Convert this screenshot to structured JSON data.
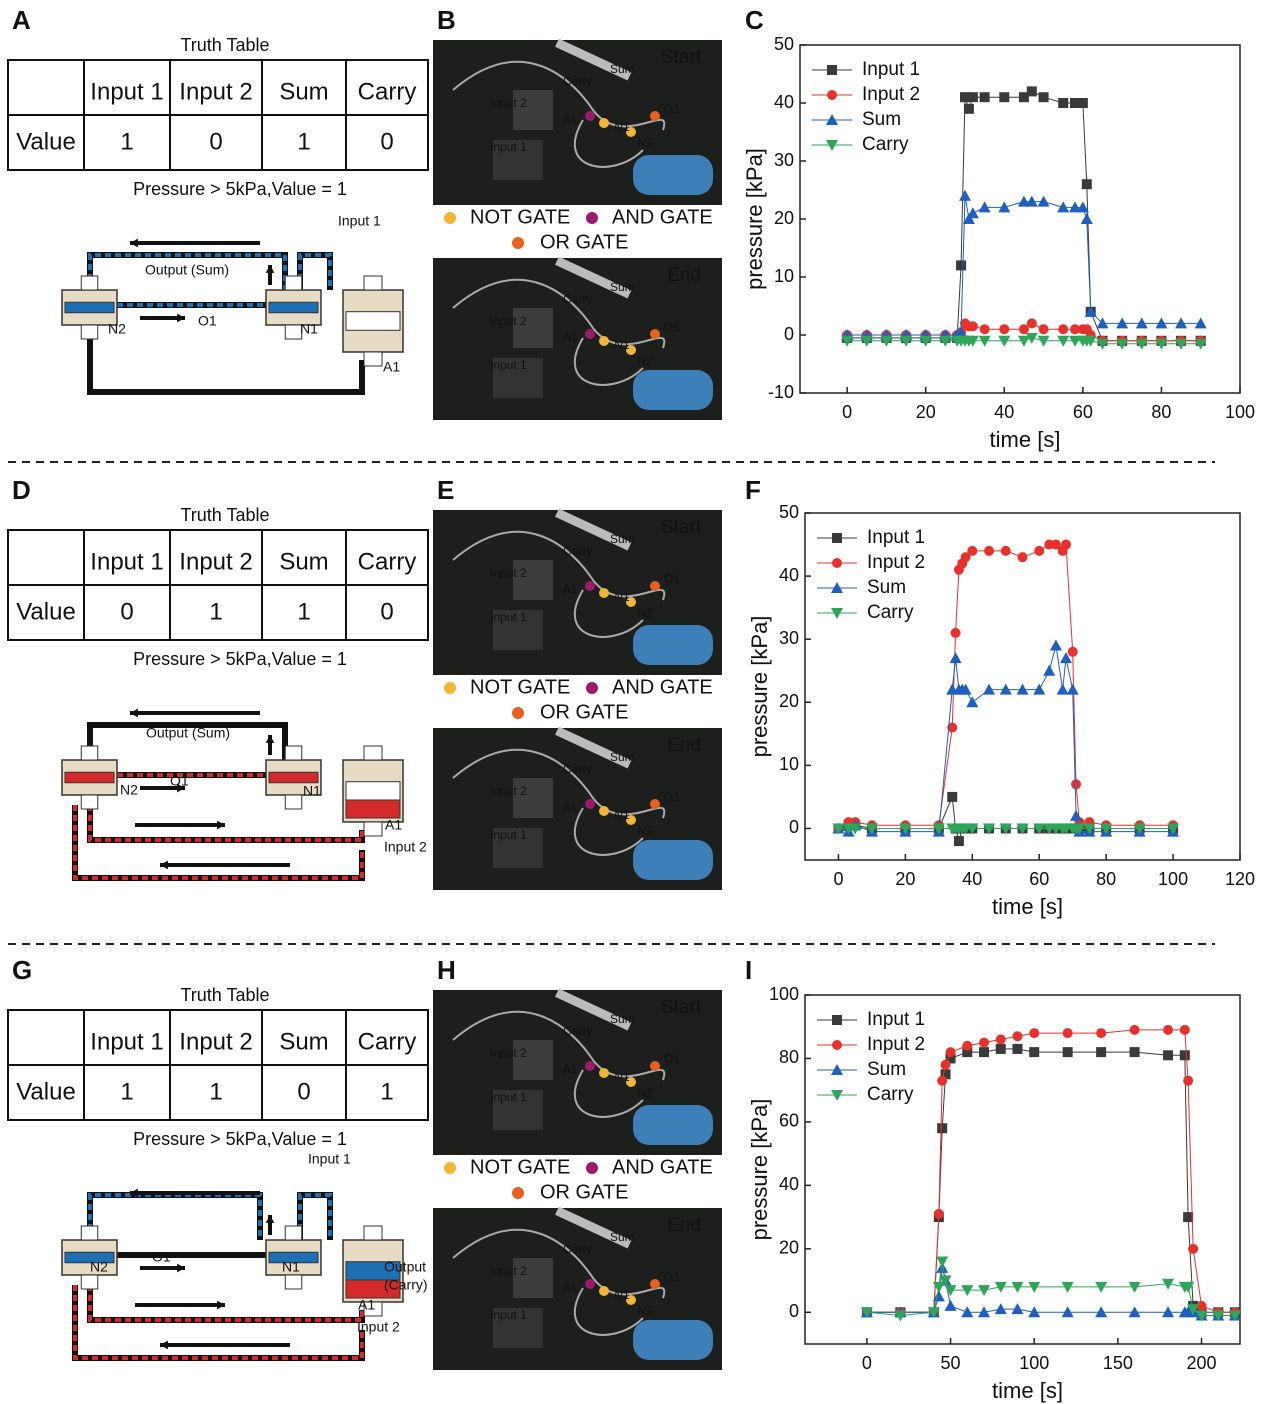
{
  "rows": [
    {
      "letters": [
        "A",
        "B",
        "C"
      ],
      "truth_table": {
        "title": "Truth Table",
        "columns": [
          "Input 1",
          "Input 2",
          "Sum",
          "Carry"
        ],
        "row_label": "Value",
        "values": [
          1,
          0,
          1,
          0
        ]
      },
      "note": "Pressure > 5kPa,Value = 1",
      "diagram_labels": [
        "Input 1",
        "Output (Sum)",
        "N2",
        "O1",
        "N1",
        "A1"
      ],
      "photos": [
        {
          "tag": "Start",
          "labels": [
            "Sum",
            "Carry",
            "Input 2",
            "A1",
            "N1",
            "N2",
            "O1",
            "Input 1"
          ]
        },
        {
          "tag": "End",
          "labels": [
            "Sum",
            "Carry",
            "Input 2",
            "A1",
            "N1",
            "N2",
            "O1",
            "Input 1"
          ]
        }
      ],
      "legend": [
        "NOT GATE",
        "AND GATE",
        "OR GATE"
      ]
    },
    {
      "letters": [
        "D",
        "E",
        "F"
      ],
      "truth_table": {
        "title": "Truth Table",
        "columns": [
          "Input 1",
          "Input 2",
          "Sum",
          "Carry"
        ],
        "row_label": "Value",
        "values": [
          0,
          1,
          1,
          0
        ]
      },
      "note": "Pressure > 5kPa,Value = 1",
      "diagram_labels": [
        "Output (Sum)",
        "O1",
        "N2",
        "N1",
        "A1",
        "Input 2"
      ],
      "photos": [
        {
          "tag": "Start",
          "labels": [
            "Sum",
            "Carry",
            "Input 2",
            "A1",
            "N1",
            "N2",
            "O1",
            "Input 1"
          ]
        },
        {
          "tag": "End",
          "labels": [
            "Sum",
            "Carry",
            "Input 2",
            "A1",
            "N1",
            "N2",
            "O1",
            "Input 1"
          ]
        }
      ],
      "legend": [
        "NOT GATE",
        "AND GATE",
        "OR GATE"
      ]
    },
    {
      "letters": [
        "G",
        "H",
        "I"
      ],
      "truth_table": {
        "title": "Truth Table",
        "columns": [
          "Input 1",
          "Input 2",
          "Sum",
          "Carry"
        ],
        "row_label": "Value",
        "values": [
          1,
          1,
          0,
          1
        ]
      },
      "note": "Pressure > 5kPa,Value = 1",
      "diagram_labels": [
        "Input 1",
        "O1",
        "N2",
        "N1",
        "Output",
        "(Carry)",
        "A1",
        "Input 2"
      ],
      "photos": [
        {
          "tag": "Start",
          "labels": [
            "Sum",
            "Carry",
            "Input 2",
            "A1",
            "N1",
            "N2",
            "O1",
            "Input 1"
          ]
        },
        {
          "tag": "End",
          "labels": [
            "Sum",
            "Carry",
            "Input 2",
            "A1",
            "N1",
            "N2",
            "O1",
            "Input 1"
          ]
        }
      ],
      "legend": [
        "NOT GATE",
        "AND GATE",
        "OR GATE"
      ]
    }
  ],
  "chart_data": [
    {
      "type": "line",
      "x_label": "time [s]",
      "y_label": "pressure [kPa]",
      "xlim": [
        -12,
        100
      ],
      "xticks": [
        0,
        20,
        40,
        60,
        80,
        100
      ],
      "ylim": [
        -10,
        50
      ],
      "yticks": [
        -10,
        0,
        10,
        20,
        30,
        40,
        50
      ],
      "x": [
        0,
        5,
        10,
        15,
        20,
        25,
        28,
        29,
        30,
        31,
        32,
        35,
        40,
        45,
        47,
        50,
        55,
        58,
        60,
        61,
        62,
        65,
        70,
        75,
        80,
        85,
        90
      ],
      "series": [
        {
          "name": "Input 1",
          "color": "#3a3a3a",
          "marker": "square",
          "values": [
            -0.5,
            -0.5,
            -0.5,
            -0.5,
            -0.5,
            -0.5,
            -0.5,
            12,
            41,
            39,
            41,
            41,
            41,
            41,
            42,
            41,
            40,
            40,
            40,
            26,
            4,
            -1,
            -1,
            -1,
            -1,
            -1,
            -1
          ]
        },
        {
          "name": "Input 2",
          "color": "#e8312a",
          "marker": "circle",
          "values": [
            0,
            0,
            0,
            0,
            0,
            0,
            0,
            0.5,
            2,
            1.5,
            1.5,
            1,
            1,
            1,
            2,
            1,
            1,
            1,
            1,
            1,
            0,
            -1,
            -1,
            -1,
            -1,
            -1,
            -1
          ]
        },
        {
          "name": "Sum",
          "color": "#1f5fbf",
          "marker": "triangle-up",
          "values": [
            0,
            0,
            0,
            0,
            0,
            0,
            0,
            0.5,
            24,
            20,
            21,
            22,
            22,
            23,
            23,
            23,
            22,
            22,
            22,
            20,
            4,
            2,
            2,
            2,
            2,
            2,
            2
          ]
        },
        {
          "name": "Carry",
          "color": "#2ea65a",
          "marker": "triangle-down",
          "values": [
            -1,
            -1,
            -1,
            -1,
            -1,
            -1,
            -1,
            -1,
            -1,
            -1,
            -1,
            -1,
            -1,
            -1,
            -0.5,
            -1,
            -1,
            -1,
            -1,
            -1,
            -1,
            -1.5,
            -1.5,
            -1.5,
            -1.5,
            -1.5,
            -1.5
          ]
        }
      ]
    },
    {
      "type": "line",
      "x_label": "time [s]",
      "y_label": "pressure [kPa]",
      "xlim": [
        -10,
        120
      ],
      "xticks": [
        0,
        20,
        40,
        60,
        80,
        100,
        120
      ],
      "ylim": [
        -5,
        50
      ],
      "yticks": [
        0,
        10,
        20,
        30,
        40,
        50
      ],
      "x": [
        0,
        3,
        5,
        10,
        20,
        30,
        34,
        35,
        36,
        37,
        38,
        40,
        45,
        50,
        55,
        60,
        63,
        65,
        67,
        68,
        70,
        71,
        72,
        75,
        80,
        90,
        100
      ],
      "series": [
        {
          "name": "Input 1",
          "color": "#3a3a3a",
          "marker": "square",
          "values": [
            0,
            0.5,
            0.5,
            0,
            0,
            0,
            5,
            0,
            -2,
            0,
            0,
            0,
            0,
            0,
            0,
            0,
            0,
            0,
            0,
            0,
            0,
            0,
            0,
            0,
            0,
            0,
            0
          ]
        },
        {
          "name": "Input 2",
          "color": "#e8312a",
          "marker": "circle",
          "values": [
            0,
            1,
            1,
            0.5,
            0.5,
            0.5,
            16,
            31,
            41,
            42,
            43,
            44,
            44,
            44,
            43,
            44,
            45,
            45,
            44,
            45,
            28,
            7,
            1,
            1,
            0.5,
            0.5,
            0.5
          ]
        },
        {
          "name": "Sum",
          "color": "#1f5fbf",
          "marker": "triangle-up",
          "values": [
            0,
            -0.5,
            0.5,
            -0.5,
            -0.5,
            -0.5,
            22,
            27,
            22,
            22,
            22,
            20,
            22,
            22,
            22,
            22,
            25,
            29,
            22,
            27,
            22,
            2,
            -0.5,
            -0.5,
            -0.5,
            -0.5,
            -0.5
          ]
        },
        {
          "name": "Carry",
          "color": "#2ea65a",
          "marker": "triangle-down",
          "values": [
            0,
            0,
            0,
            0,
            0,
            0,
            0,
            0,
            0,
            0,
            0,
            0,
            0,
            0,
            0,
            0,
            0,
            0,
            0,
            0,
            0,
            0,
            0,
            0,
            0,
            0,
            0
          ]
        }
      ]
    },
    {
      "type": "line",
      "x_label": "time [s]",
      "y_label": "pressure [kPa]",
      "xlim": [
        -37,
        223
      ],
      "xticks": [
        0,
        50,
        100,
        150,
        200
      ],
      "ylim": [
        -10,
        100
      ],
      "yticks": [
        0,
        20,
        40,
        60,
        80,
        100
      ],
      "x": [
        0,
        20,
        40,
        43,
        45,
        47,
        50,
        60,
        70,
        80,
        90,
        100,
        120,
        140,
        160,
        180,
        190,
        192,
        195,
        200,
        210,
        220
      ],
      "series": [
        {
          "name": "Input 1",
          "color": "#3a3a3a",
          "marker": "square",
          "values": [
            0,
            0,
            0,
            30,
            58,
            75,
            80,
            82,
            82,
            83,
            83,
            82,
            82,
            82,
            82,
            81,
            81,
            30,
            2,
            0,
            0,
            0
          ]
        },
        {
          "name": "Input 2",
          "color": "#e8312a",
          "marker": "circle",
          "values": [
            0,
            0,
            0,
            31,
            73,
            78,
            82,
            84,
            85,
            86,
            87,
            88,
            88,
            88,
            89,
            89,
            89,
            73,
            20,
            2,
            0,
            0
          ]
        },
        {
          "name": "Sum",
          "color": "#1f5fbf",
          "marker": "triangle-up",
          "values": [
            0,
            0,
            0,
            5,
            14,
            10,
            2,
            0,
            0,
            1,
            1,
            0,
            0,
            0,
            0,
            0,
            0,
            0,
            0,
            -1,
            -1,
            -1
          ]
        },
        {
          "name": "Carry",
          "color": "#2ea65a",
          "marker": "triangle-down",
          "values": [
            0,
            -1,
            0,
            8,
            16,
            10,
            7,
            7,
            7,
            8,
            8,
            8,
            8,
            8,
            8,
            9,
            8,
            8,
            1,
            -1,
            -1,
            -1
          ]
        }
      ]
    }
  ]
}
